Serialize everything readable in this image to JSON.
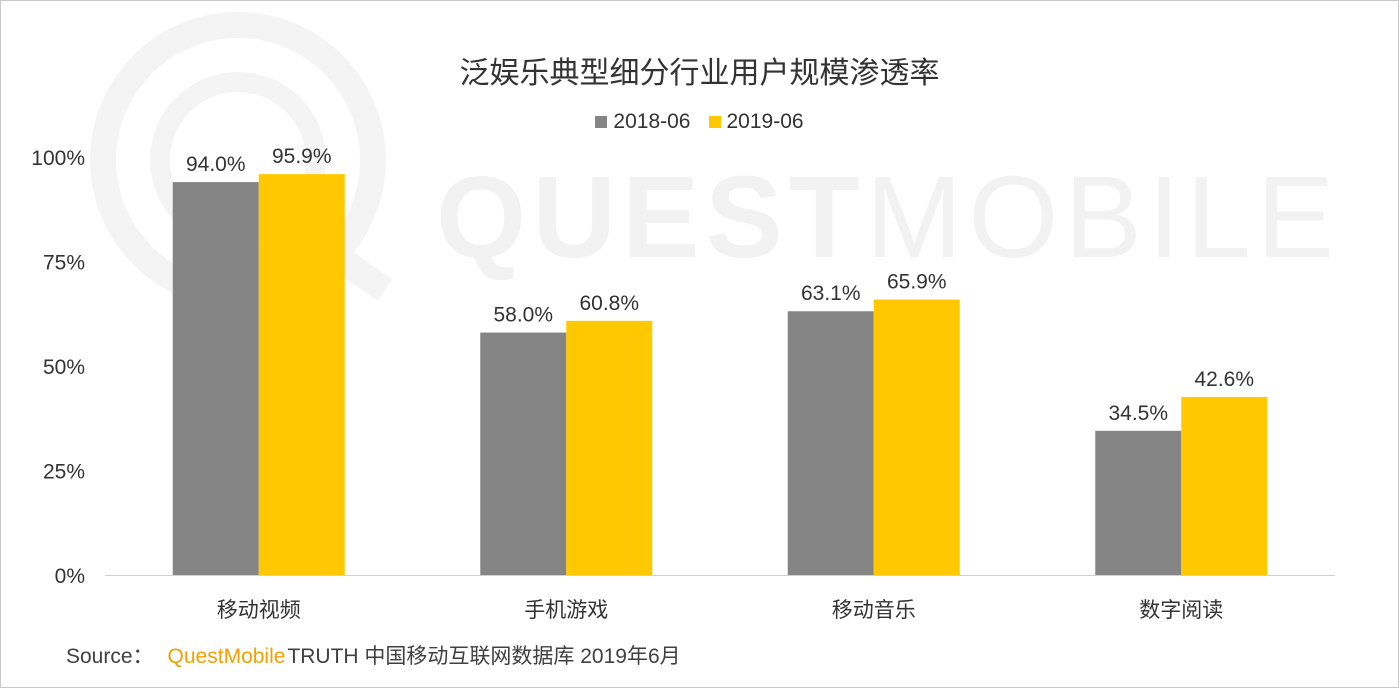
{
  "watermark": {
    "text_bold": "QUEST",
    "text_thin": "MOBILE"
  },
  "source": {
    "label": "Source：",
    "brand": "QuestMobile",
    "text": "TRUTH 中国移动互联网数据库 2019年6月"
  },
  "colors": {
    "series_2018": "#858585",
    "series_2019": "#ffc800",
    "brand": "#f5a000"
  },
  "chart_data": {
    "type": "bar",
    "title": "泛娱乐典型细分行业用户规模渗透率",
    "xlabel": "",
    "ylabel": "",
    "ylim": [
      0,
      100
    ],
    "yticks": [
      "0%",
      "25%",
      "50%",
      "75%",
      "100%"
    ],
    "ytick_values": [
      0,
      25,
      50,
      75,
      100
    ],
    "grid": false,
    "legend_position": "top-center",
    "categories": [
      "移动视频",
      "手机游戏",
      "移动音乐",
      "数字阅读"
    ],
    "series": [
      {
        "name": "2018-06",
        "values": [
          94.0,
          58.0,
          63.1,
          34.5
        ],
        "labels": [
          "94.0%",
          "58.0%",
          "63.1%",
          "34.5%"
        ]
      },
      {
        "name": "2019-06",
        "values": [
          95.9,
          60.8,
          65.9,
          42.6
        ],
        "labels": [
          "95.9%",
          "60.8%",
          "65.9%",
          "42.6%"
        ]
      }
    ]
  }
}
